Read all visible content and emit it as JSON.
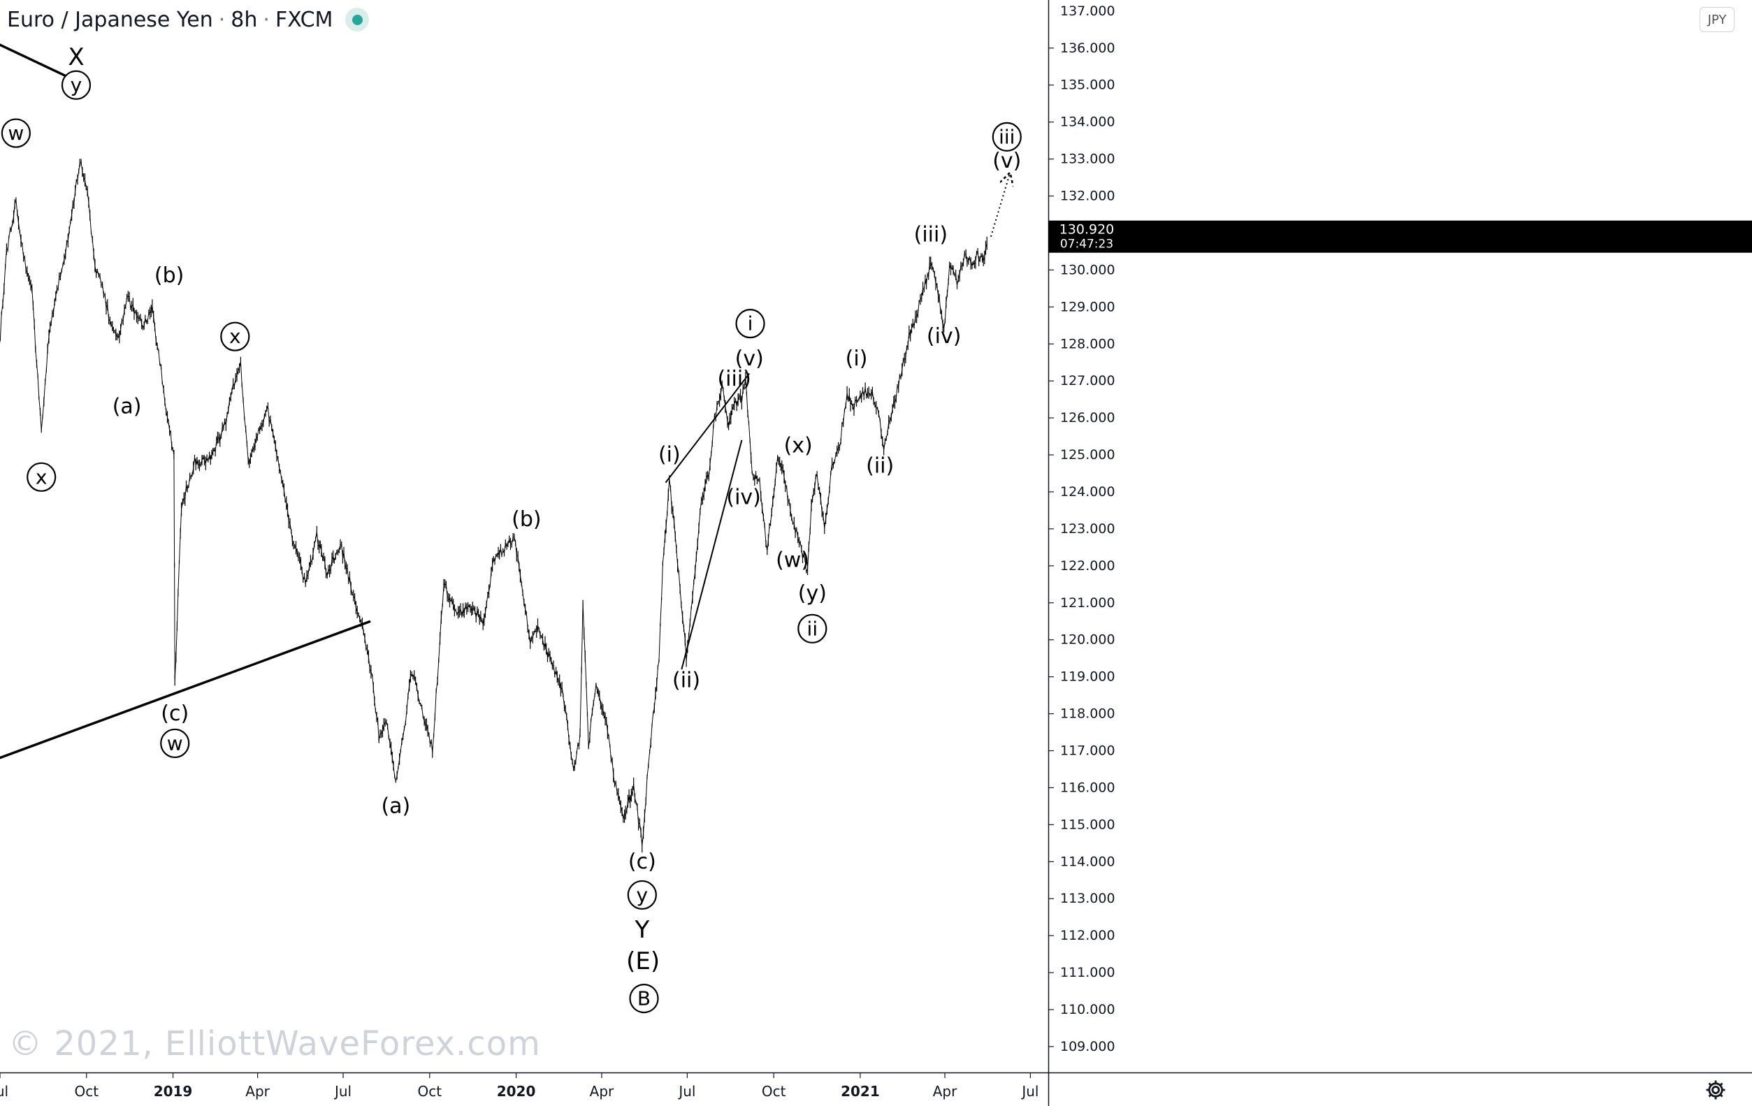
{
  "header": {
    "symbol": "Euro / Japanese Yen",
    "interval": "8h",
    "exchange": "FXCM",
    "status_color": "#26a69a"
  },
  "currency_button": "JPY",
  "watermark": "© 2021, ElliottWaveForex.com",
  "price_label": {
    "price": "130.920",
    "countdown": "07:47:23"
  },
  "settings_icon": "gear-icon",
  "chart_data": {
    "type": "line",
    "title": "Euro / Japanese Yen · 8h · FXCM",
    "line_color": "#000000",
    "grid": false,
    "x_range": [
      "2018-07-01",
      "2021-07-20"
    ],
    "ylim": [
      108.3,
      137.3
    ],
    "y_ticks": [
      109,
      110,
      111,
      112,
      113,
      114,
      115,
      116,
      117,
      118,
      119,
      120,
      121,
      122,
      123,
      124,
      125,
      126,
      127,
      128,
      129,
      130,
      131,
      132,
      133,
      134,
      135,
      136
    ],
    "y_tick_decimals": 3,
    "top_tick_partial": "137.000",
    "x_ticks": [
      {
        "date": "2018-07-01",
        "label": "Jul",
        "bold": false
      },
      {
        "date": "2018-10-01",
        "label": "Oct",
        "bold": false
      },
      {
        "date": "2019-01-01",
        "label": "2019",
        "bold": true
      },
      {
        "date": "2019-04-01",
        "label": "Apr",
        "bold": false
      },
      {
        "date": "2019-07-01",
        "label": "Jul",
        "bold": false
      },
      {
        "date": "2019-10-01",
        "label": "Oct",
        "bold": false
      },
      {
        "date": "2020-01-01",
        "label": "2020",
        "bold": true
      },
      {
        "date": "2020-04-01",
        "label": "Apr",
        "bold": false
      },
      {
        "date": "2020-07-01",
        "label": "Jul",
        "bold": false
      },
      {
        "date": "2020-10-01",
        "label": "Oct",
        "bold": false
      },
      {
        "date": "2021-01-01",
        "label": "2021",
        "bold": true
      },
      {
        "date": "2021-04-01",
        "label": "Apr",
        "bold": false
      },
      {
        "date": "2021-07-01",
        "label": "Jul",
        "bold": false
      }
    ],
    "series": [
      {
        "x": [
          "2018-06-30",
          "2018-07-08",
          "2018-07-18",
          "2018-07-26",
          "2018-08-04",
          "2018-08-14",
          "2018-08-22",
          "2018-09-02",
          "2018-09-14",
          "2018-09-24",
          "2018-10-02",
          "2018-10-10",
          "2018-10-18",
          "2018-10-26",
          "2018-11-05",
          "2018-11-13",
          "2018-11-22",
          "2018-11-30",
          "2018-12-10",
          "2018-12-18",
          "2018-12-26",
          "2019-01-02",
          "2019-01-03",
          "2019-01-10",
          "2019-01-24",
          "2019-02-10",
          "2019-02-25",
          "2019-03-06",
          "2019-03-14",
          "2019-03-22",
          "2019-04-02",
          "2019-04-12",
          "2019-04-24",
          "2019-05-08",
          "2019-05-22",
          "2019-06-03",
          "2019-06-14",
          "2019-06-28",
          "2019-07-08",
          "2019-07-20",
          "2019-08-01",
          "2019-08-08",
          "2019-08-16",
          "2019-08-26",
          "2019-09-04",
          "2019-09-12",
          "2019-09-24",
          "2019-10-04",
          "2019-10-16",
          "2019-10-30",
          "2019-11-12",
          "2019-11-28",
          "2019-12-08",
          "2019-12-18",
          "2019-12-30",
          "2020-01-08",
          "2020-01-16",
          "2020-01-24",
          "2020-02-06",
          "2020-02-20",
          "2020-03-02",
          "2020-03-09",
          "2020-03-12",
          "2020-03-18",
          "2020-03-26",
          "2020-04-06",
          "2020-04-16",
          "2020-04-24",
          "2020-05-05",
          "2020-05-14",
          "2020-05-22",
          "2020-06-01",
          "2020-06-05",
          "2020-06-12",
          "2020-06-22",
          "2020-06-30",
          "2020-07-08",
          "2020-07-16",
          "2020-07-24",
          "2020-07-30",
          "2020-08-07",
          "2020-08-14",
          "2020-08-20",
          "2020-08-28",
          "2020-09-01",
          "2020-09-08",
          "2020-09-16",
          "2020-09-24",
          "2020-09-30",
          "2020-10-05",
          "2020-10-12",
          "2020-10-20",
          "2020-10-28",
          "2020-11-02",
          "2020-11-06",
          "2020-11-10",
          "2020-11-16",
          "2020-11-24",
          "2020-12-02",
          "2020-12-10",
          "2020-12-18",
          "2020-12-24",
          "2021-01-05",
          "2021-01-14",
          "2021-01-22",
          "2021-01-26",
          "2021-02-03",
          "2021-02-12",
          "2021-02-22",
          "2021-03-02",
          "2021-03-10",
          "2021-03-17",
          "2021-03-25",
          "2021-03-31",
          "2021-04-06",
          "2021-04-14",
          "2021-04-22",
          "2021-04-30",
          "2021-05-06",
          "2021-05-12",
          "2021-05-17"
        ],
        "values": [
          127.8,
          130.5,
          131.9,
          130.4,
          129.4,
          125.6,
          128.3,
          129.7,
          131.2,
          133.0,
          132.2,
          130.0,
          129.6,
          128.6,
          128.2,
          129.3,
          128.8,
          128.5,
          128.9,
          127.5,
          126.0,
          125.0,
          118.8,
          123.6,
          124.8,
          124.9,
          125.8,
          126.8,
          127.4,
          124.8,
          125.7,
          126.2,
          124.6,
          122.8,
          121.5,
          122.8,
          121.8,
          122.6,
          121.6,
          120.5,
          119.0,
          117.4,
          117.8,
          116.1,
          117.6,
          119.2,
          118.0,
          117.0,
          121.5,
          120.7,
          120.9,
          120.5,
          122.2,
          122.4,
          122.8,
          121.2,
          120.0,
          120.3,
          119.5,
          118.5,
          116.5,
          117.4,
          121.0,
          117.2,
          118.8,
          117.8,
          116.0,
          115.2,
          116.0,
          114.5,
          117.0,
          119.5,
          122.0,
          124.3,
          121.8,
          119.5,
          121.5,
          123.8,
          124.5,
          126.0,
          126.9,
          125.8,
          126.4,
          126.5,
          127.0,
          124.5,
          124.3,
          122.4,
          123.8,
          124.8,
          124.5,
          123.2,
          122.7,
          122.2,
          121.8,
          123.6,
          124.5,
          123.0,
          124.7,
          125.2,
          126.7,
          126.3,
          126.7,
          126.7,
          126.0,
          125.1,
          126.1,
          127.0,
          128.2,
          128.8,
          129.5,
          130.2,
          129.4,
          128.3,
          130.1,
          129.7,
          130.4,
          130.2,
          130.4,
          130.2,
          130.92
        ]
      }
    ],
    "annotations": [
      {
        "text": "X",
        "date": "2018-09-20",
        "price": 135.75,
        "circled": false
      },
      {
        "text": "y",
        "date": "2018-09-20",
        "price": 135.0,
        "circled": true
      },
      {
        "text": "w",
        "date": "2018-07-18",
        "price": 133.7,
        "circled": true
      },
      {
        "text": "x",
        "date": "2018-08-14",
        "price": 124.4,
        "circled": true
      },
      {
        "text": "(a)",
        "date": "2018-11-13",
        "price": 126.3,
        "circled": false
      },
      {
        "text": "(b)",
        "date": "2018-12-28",
        "price": 129.85,
        "circled": false
      },
      {
        "text": "(c)",
        "date": "2019-01-03",
        "price": 118.0,
        "circled": false
      },
      {
        "text": "w",
        "date": "2019-01-03",
        "price": 117.2,
        "circled": true
      },
      {
        "text": "x",
        "date": "2019-03-08",
        "price": 128.2,
        "circled": true
      },
      {
        "text": "(a)",
        "date": "2019-08-26",
        "price": 115.5,
        "circled": false
      },
      {
        "text": "(b)",
        "date": "2020-01-12",
        "price": 123.25,
        "circled": false
      },
      {
        "text": "(c)",
        "date": "2020-05-14",
        "price": 114.0,
        "circled": false
      },
      {
        "text": "y",
        "date": "2020-05-14",
        "price": 113.1,
        "circled": true
      },
      {
        "text": "Y",
        "date": "2020-05-14",
        "price": 112.15,
        "circled": false
      },
      {
        "text": "(E)",
        "date": "2020-05-15",
        "price": 111.3,
        "circled": false
      },
      {
        "text": "B",
        "date": "2020-05-16",
        "price": 110.3,
        "circled": true
      },
      {
        "text": "(i)",
        "date": "2020-06-12",
        "price": 125.0,
        "circled": false
      },
      {
        "text": "(ii)",
        "date": "2020-06-30",
        "price": 118.9,
        "circled": false
      },
      {
        "text": "(iii)",
        "date": "2020-08-20",
        "price": 127.05,
        "circled": false
      },
      {
        "text": "(iv)",
        "date": "2020-08-30",
        "price": 123.85,
        "circled": false
      },
      {
        "text": "(v)",
        "date": "2020-09-05",
        "price": 127.6,
        "circled": false
      },
      {
        "text": "i",
        "date": "2020-09-06",
        "price": 128.55,
        "circled": true
      },
      {
        "text": "(w)",
        "date": "2020-10-21",
        "price": 122.15,
        "circled": false
      },
      {
        "text": "(x)",
        "date": "2020-10-27",
        "price": 125.25,
        "circled": false
      },
      {
        "text": "(y)",
        "date": "2020-11-11",
        "price": 121.25,
        "circled": false
      },
      {
        "text": "ii",
        "date": "2020-11-11",
        "price": 120.3,
        "circled": true
      },
      {
        "text": "(i)",
        "date": "2020-12-28",
        "price": 127.6,
        "circled": false
      },
      {
        "text": "(ii)",
        "date": "2021-01-22",
        "price": 124.7,
        "circled": false
      },
      {
        "text": "(iii)",
        "date": "2021-03-17",
        "price": 130.95,
        "circled": false
      },
      {
        "text": "(iv)",
        "date": "2021-03-31",
        "price": 128.2,
        "circled": false
      },
      {
        "text": "iii",
        "date": "2021-06-06",
        "price": 133.6,
        "circled": true
      },
      {
        "text": "(v)",
        "date": "2021-06-06",
        "price": 132.95,
        "circled": false
      }
    ],
    "trendlines": [
      {
        "from": [
          "2018-06-30",
          136.1
        ],
        "to": [
          "2018-09-17",
          135.15
        ],
        "width": 3.5,
        "style": "solid"
      },
      {
        "from": [
          "2018-06-30",
          116.8
        ],
        "to": [
          "2019-07-30",
          120.5
        ],
        "width": 3.5,
        "style": "solid"
      },
      {
        "from": [
          "2020-06-08",
          124.25
        ],
        "to": [
          "2020-09-05",
          127.2
        ],
        "width": 2,
        "style": "solid"
      },
      {
        "from": [
          "2020-06-25",
          119.2
        ],
        "to": [
          "2020-08-28",
          125.4
        ],
        "width": 2,
        "style": "solid"
      },
      {
        "from": [
          "2021-05-20",
          130.9
        ],
        "to": [
          "2021-06-09",
          132.6
        ],
        "width": 2,
        "style": "dotted",
        "arrow": true
      }
    ]
  }
}
